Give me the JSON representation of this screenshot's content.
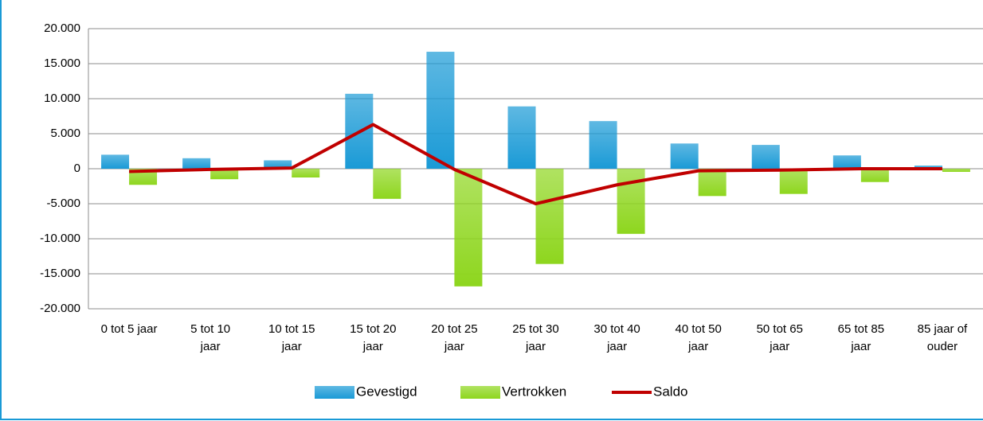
{
  "chart_data": {
    "type": "bar_line",
    "categories": [
      "0 tot 5 jaar",
      "5 tot 10 jaar",
      "10 tot 15 jaar",
      "15 tot 20 jaar",
      "20 tot 25 jaar",
      "25 tot 30 jaar",
      "30 tot 40 jaar",
      "40 tot 50 jaar",
      "50 tot 65 jaar",
      "65 tot 85 jaar",
      "85 jaar of ouder"
    ],
    "series": [
      {
        "name": "Gevestigd",
        "type": "bar",
        "color": "#1a9ad6",
        "values": [
          2000,
          1500,
          1200,
          10700,
          16700,
          8900,
          6800,
          3600,
          3400,
          1900,
          450
        ]
      },
      {
        "name": "Vertrokken",
        "type": "bar",
        "color": "#8ed61e",
        "values": [
          -2300,
          -1500,
          -1250,
          -4300,
          -16800,
          -13600,
          -9300,
          -3900,
          -3600,
          -1900,
          -450
        ]
      },
      {
        "name": "Saldo",
        "type": "line",
        "color": "#c00000",
        "values": [
          -400,
          -100,
          100,
          6300,
          -100,
          -5000,
          -2300,
          -300,
          -200,
          0,
          0
        ]
      }
    ],
    "ylim": [
      -20000,
      20000
    ],
    "yticks": [
      {
        "value": -20000,
        "label": "-20.000"
      },
      {
        "value": -15000,
        "label": "-15.000"
      },
      {
        "value": -10000,
        "label": "-10.000"
      },
      {
        "value": -5000,
        "label": "-5.000"
      },
      0,
      {
        "value": 5000,
        "label": "5.000"
      },
      {
        "value": 10000,
        "label": "10.000"
      },
      {
        "value": 15000,
        "label": "15.000"
      },
      {
        "value": 20000,
        "label": "20.000"
      }
    ],
    "grid": true,
    "legend": "bottom"
  }
}
